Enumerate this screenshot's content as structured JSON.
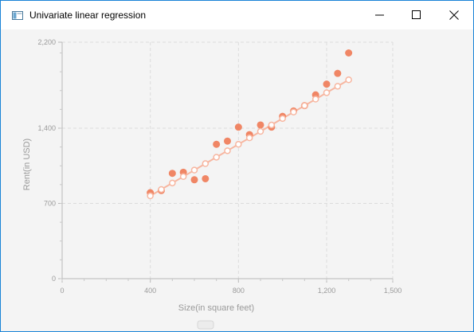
{
  "window": {
    "title": "Univariate linear regression",
    "icon": "java-app-icon",
    "controls": [
      "minimize-icon",
      "maximize-icon",
      "close-icon"
    ]
  },
  "chart_data": {
    "type": "scatter",
    "xlabel": "Size(in square feet)",
    "ylabel": "Rent(in USD)",
    "xlim": [
      0,
      1500
    ],
    "ylim": [
      0,
      2200
    ],
    "x_ticks": [
      0,
      400,
      800,
      1200,
      1500
    ],
    "x_tick_labels": [
      "0",
      "400",
      "800",
      "1,200",
      "1,500"
    ],
    "y_ticks": [
      0,
      700,
      1400,
      2200
    ],
    "y_tick_labels": [
      "0",
      "700",
      "1,400",
      "2,200"
    ],
    "grid": true,
    "series": [
      {
        "kind": "points",
        "color": "#f07a55",
        "x": [
          400,
          450,
          500,
          550,
          600,
          650,
          700,
          750,
          800,
          850,
          900,
          950,
          1000,
          1050,
          1100,
          1150,
          1200,
          1250,
          1300
        ],
        "y": [
          800,
          820,
          980,
          990,
          920,
          930,
          1250,
          1280,
          1410,
          1340,
          1430,
          1410,
          1510,
          1560,
          1610,
          1710,
          1810,
          1910,
          2100
        ]
      },
      {
        "kind": "regression",
        "color": "#f7b6a0",
        "x": [
          400,
          450,
          500,
          550,
          600,
          650,
          700,
          750,
          800,
          850,
          900,
          950,
          1000,
          1050,
          1100,
          1150,
          1200,
          1250,
          1300
        ],
        "y": [
          770,
          830,
          890,
          950,
          1010,
          1070,
          1130,
          1190,
          1250,
          1310,
          1370,
          1430,
          1490,
          1550,
          1610,
          1670,
          1730,
          1790,
          1850
        ]
      }
    ]
  }
}
